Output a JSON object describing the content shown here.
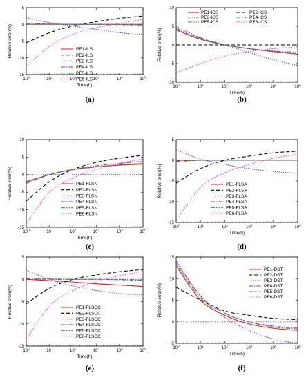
{
  "chart_data": [
    {
      "id": "a",
      "letter": "(a)",
      "type": "line",
      "xlabel": "Time(h)",
      "ylabel": "Relative error(%)",
      "xlim": [
        1,
        100000
      ],
      "ylim": [
        -15,
        5
      ],
      "x_ticks": [
        "10^0",
        "10^1",
        "10^2",
        "10^3",
        "10^4",
        "10^5"
      ],
      "y_ticks": [
        5,
        0,
        -5,
        -10,
        -15
      ],
      "legend": {
        "position": "center",
        "series_names": [
          "PE1-ILS",
          "PE2-ILS",
          "PE3-ILS",
          "PE4-ILS",
          "PE5-ILS",
          "PE6-ILS"
        ]
      },
      "series": [
        {
          "name": "PE1-ILS",
          "x": [
            1,
            10,
            100,
            1000,
            10000,
            100000
          ],
          "y": [
            0,
            0,
            0,
            0,
            0,
            0
          ]
        },
        {
          "name": "PE2-ILS",
          "x": [
            1,
            10,
            100,
            1000,
            10000,
            100000
          ],
          "y": [
            -5.5,
            -2.5,
            -0.5,
            0.8,
            1.8,
            2.5
          ]
        },
        {
          "name": "PE3-ILS",
          "x": [
            1,
            10,
            100,
            1000,
            10000,
            100000
          ],
          "y": [
            2,
            0.5,
            -0.5,
            -1.5,
            -2.5,
            -3
          ]
        },
        {
          "name": "PE4-ILS",
          "x": [
            1,
            10,
            100,
            1000,
            10000,
            100000
          ],
          "y": [
            0.1,
            0.1,
            0,
            0,
            -0.1,
            -0.2
          ]
        },
        {
          "name": "PE5-ILS",
          "x": [
            1,
            10,
            100,
            1000,
            10000,
            100000
          ],
          "y": [
            0.2,
            0.1,
            0,
            0,
            0,
            0
          ]
        },
        {
          "name": "PE6-ILS",
          "x": [
            1,
            10,
            100,
            1000,
            10000,
            100000
          ],
          "y": [
            -12.5,
            -6.5,
            -3,
            -1,
            0.3,
            1.5
          ]
        }
      ]
    },
    {
      "id": "b",
      "letter": "(b)",
      "type": "line",
      "xlabel": "Time(h)",
      "ylabel": "Relative error(%)",
      "xlim": [
        1,
        100000
      ],
      "ylim": [
        -10,
        10
      ],
      "x_ticks": [
        "10^0",
        "10^1",
        "10^2",
        "10^3",
        "10^4",
        "10^5"
      ],
      "y_ticks": [
        10,
        5,
        0,
        -5,
        -10
      ],
      "legend": {
        "position": "top",
        "series_names": [
          "PE1-ICS",
          "PE2-ICS",
          "PE3-ICS",
          "PE4-ICS",
          "PE5-ICS",
          "PE6-ICS"
        ]
      },
      "series": [
        {
          "name": "PE1-ICS",
          "x": [
            1,
            10,
            100,
            1000,
            10000,
            100000
          ],
          "y": [
            4,
            1.5,
            0,
            -1,
            -1.8,
            -2.5
          ]
        },
        {
          "name": "PE2-ICS",
          "x": [
            1,
            10,
            100,
            1000,
            10000,
            100000
          ],
          "y": [
            0,
            0,
            0,
            0,
            0,
            0
          ]
        },
        {
          "name": "PE3-ICS",
          "x": [
            1,
            10,
            100,
            1000,
            10000,
            100000
          ],
          "y": [
            5,
            2,
            0,
            -2,
            -4,
            -5.5
          ]
        },
        {
          "name": "PE4-ICS",
          "x": [
            1,
            10,
            100,
            1000,
            10000,
            100000
          ],
          "y": [
            4.5,
            1.8,
            0,
            -1,
            -1.8,
            -2.2
          ]
        },
        {
          "name": "PE5-ICS",
          "x": [
            1,
            10,
            100,
            1000,
            10000,
            100000
          ],
          "y": [
            4.2,
            1.6,
            0,
            -1,
            -1.6,
            -2
          ]
        },
        {
          "name": "PE6-ICS",
          "x": [
            1,
            10,
            100,
            1000,
            10000,
            100000
          ],
          "y": [
            -7.5,
            -5,
            -3,
            -1.8,
            -1,
            -0.5
          ]
        }
      ]
    },
    {
      "id": "c",
      "letter": "(c)",
      "type": "line",
      "xlabel": "Time(h)",
      "ylabel": "Relative error(%)",
      "xlim": [
        1,
        100000
      ],
      "ylim": [
        -15,
        10
      ],
      "x_ticks": [
        "10^0",
        "10^1",
        "10^2",
        "10^3",
        "10^4",
        "10^5"
      ],
      "y_ticks": [
        10,
        5,
        0,
        -5,
        -10,
        -15
      ],
      "legend": {
        "position": "bottom-right",
        "series_names": [
          "PE1-FLSN",
          "PE2-FLSN",
          "PE3-FLSN",
          "PE4-FLSN",
          "PE5-FLSN",
          "PE6-FLSN"
        ]
      },
      "series": [
        {
          "name": "PE1-FLSN",
          "x": [
            1,
            10,
            100,
            1000,
            10000,
            100000
          ],
          "y": [
            -2,
            0,
            1.5,
            2.2,
            2.7,
            3
          ]
        },
        {
          "name": "PE2-FLSN",
          "x": [
            1,
            10,
            100,
            1000,
            10000,
            100000
          ],
          "y": [
            -7.5,
            -2,
            1.5,
            3.5,
            4.7,
            5.5
          ]
        },
        {
          "name": "PE3-FLSN",
          "x": [
            1,
            10,
            100,
            1000,
            10000,
            100000
          ],
          "y": [
            0,
            0,
            0,
            0,
            0,
            0
          ]
        },
        {
          "name": "PE4-FLSN",
          "x": [
            1,
            10,
            100,
            1000,
            10000,
            100000
          ],
          "y": [
            -2.5,
            0,
            1.5,
            2.5,
            3.2,
            3.8
          ]
        },
        {
          "name": "PE5-FLSN",
          "x": [
            1,
            10,
            100,
            1000,
            10000,
            100000
          ],
          "y": [
            -2.2,
            0,
            1.4,
            2.2,
            2.8,
            3.2
          ]
        },
        {
          "name": "PE6-FLSN",
          "x": [
            1,
            10,
            100,
            1000,
            10000,
            100000
          ],
          "y": [
            -14,
            -5,
            -1,
            1.5,
            3.2,
            4.5
          ]
        }
      ]
    },
    {
      "id": "d",
      "letter": "(d)",
      "type": "line",
      "xlabel": "Time(h)",
      "ylabel": "Relative error(%)",
      "xlim": [
        1,
        100000
      ],
      "ylim": [
        -15,
        5
      ],
      "x_ticks": [
        "10^0",
        "10^1",
        "10^2",
        "10^3",
        "10^4",
        "10^5"
      ],
      "y_ticks": [
        5,
        0,
        -5,
        -10,
        -15
      ],
      "legend": {
        "position": "bottom-center",
        "series_names": [
          "PE1-FLSA",
          "PE2-FLSA",
          "PE3-FLSA",
          "PE4-FLSA",
          "PE5-FLSA",
          "PE6-FLSA"
        ]
      },
      "series": [
        {
          "name": "PE1-FLSA",
          "x": [
            1,
            10,
            100,
            1000,
            10000,
            100000
          ],
          "y": [
            0,
            0,
            0,
            0,
            0,
            0
          ]
        },
        {
          "name": "PE2-FLSA",
          "x": [
            1,
            10,
            100,
            1000,
            10000,
            100000
          ],
          "y": [
            -5.5,
            -2,
            0,
            1,
            1.8,
            2.2
          ]
        },
        {
          "name": "PE3-FLSA",
          "x": [
            1,
            10,
            100,
            1000,
            10000,
            100000
          ],
          "y": [
            2.5,
            0.3,
            -1,
            -2,
            -2.7,
            -3.2
          ]
        },
        {
          "name": "PE4-FLSA",
          "x": [
            1,
            10,
            100,
            1000,
            10000,
            100000
          ],
          "y": [
            -0.3,
            0,
            0,
            0,
            0,
            0
          ]
        },
        {
          "name": "PE5-FLSA",
          "x": [
            1,
            10,
            100,
            1000,
            10000,
            100000
          ],
          "y": [
            -0.2,
            0,
            0,
            0,
            0,
            0
          ]
        },
        {
          "name": "PE6-FLSA",
          "x": [
            1,
            10,
            100,
            1000,
            10000,
            100000
          ],
          "y": [
            -14.5,
            -6.5,
            -3,
            -1,
            0.5,
            1.5
          ]
        }
      ]
    },
    {
      "id": "e",
      "letter": "(e)",
      "type": "line",
      "xlabel": "Time(h)",
      "ylabel": "Relative error(%)",
      "xlim": [
        1,
        100000
      ],
      "ylim": [
        -15,
        5
      ],
      "x_ticks": [
        "10^0",
        "10^1",
        "10^2",
        "10^3",
        "10^4",
        "10^5"
      ],
      "y_ticks": [
        5,
        0,
        -5,
        -10,
        -15
      ],
      "legend": {
        "position": "bottom-center",
        "series_names": [
          "PE1-FLSCC",
          "PE2-FLSCC",
          "PE3-FLSCC",
          "PE4-FLSCC",
          "PE5-FLSCC",
          "PE6-FLSCC"
        ]
      },
      "series": [
        {
          "name": "PE1-FLSCC",
          "x": [
            1,
            10,
            100,
            1000,
            10000,
            100000
          ],
          "y": [
            0,
            -0.3,
            -0.6,
            -1,
            -1.3,
            -1.6
          ]
        },
        {
          "name": "PE2-FLSCC",
          "x": [
            1,
            10,
            100,
            1000,
            10000,
            100000
          ],
          "y": [
            -5.5,
            -2,
            0,
            1,
            1.7,
            2.2
          ]
        },
        {
          "name": "PE3-FLSCC",
          "x": [
            1,
            10,
            100,
            1000,
            10000,
            100000
          ],
          "y": [
            2,
            0,
            -1.5,
            -2.5,
            -3.2,
            -3.5
          ]
        },
        {
          "name": "PE4-FLSCC",
          "x": [
            1,
            10,
            100,
            1000,
            10000,
            100000
          ],
          "y": [
            0.1,
            0,
            0,
            0,
            -0.1,
            -0.2
          ]
        },
        {
          "name": "PE5-FLSCC",
          "x": [
            1,
            10,
            100,
            1000,
            10000,
            100000
          ],
          "y": [
            0.2,
            0.1,
            0,
            0,
            0,
            0
          ]
        },
        {
          "name": "PE6-FLSCC",
          "x": [
            1,
            10,
            100,
            1000,
            10000,
            100000
          ],
          "y": [
            -13.5,
            -6,
            -2.5,
            -0.5,
            0.8,
            1.8
          ]
        }
      ]
    },
    {
      "id": "f",
      "letter": "(f)",
      "type": "line",
      "xlabel": "Time(h)",
      "ylabel": "Relative error(%)",
      "xlim": [
        1,
        100000
      ],
      "ylim": [
        -5,
        15
      ],
      "x_ticks": [
        "10^0",
        "10^1",
        "10^2",
        "10^3",
        "10^4",
        "10^5"
      ],
      "y_ticks": [
        15,
        10,
        5,
        0,
        -5
      ],
      "legend": {
        "position": "top-right",
        "series_names": [
          "PE1-DST",
          "PE2-DST",
          "PE3-DST",
          "PE4-DST",
          "PE5-DST",
          "PE6-DST"
        ]
      },
      "series": [
        {
          "name": "PE1-DST",
          "x": [
            1,
            10,
            100,
            1000,
            10000,
            100000
          ],
          "y": [
            13,
            5,
            1.5,
            -0.5,
            -1.5,
            -2
          ]
        },
        {
          "name": "PE2-DST",
          "x": [
            1,
            10,
            100,
            1000,
            10000,
            100000
          ],
          "y": [
            8,
            5,
            2.5,
            1.5,
            0.8,
            0.5
          ]
        },
        {
          "name": "PE3-DST",
          "x": [
            1,
            10,
            100,
            1000,
            10000,
            100000
          ],
          "y": [
            14,
            6,
            1,
            -2,
            -4,
            -5
          ]
        },
        {
          "name": "PE4-DST",
          "x": [
            1,
            10,
            100,
            1000,
            10000,
            100000
          ],
          "y": [
            14,
            6,
            2,
            0,
            -1,
            -1.5
          ]
        },
        {
          "name": "PE5-DST",
          "x": [
            1,
            10,
            100,
            1000,
            10000,
            100000
          ],
          "y": [
            13.5,
            5.5,
            2,
            0,
            -1.2,
            -1.7
          ]
        },
        {
          "name": "PE6-DST",
          "x": [
            1,
            10,
            100,
            1000,
            10000,
            100000
          ],
          "y": [
            0,
            0,
            0,
            0,
            0,
            0
          ]
        }
      ]
    }
  ],
  "series_styles": [
    {
      "color": "#e41a1c",
      "dash": ""
    },
    {
      "color": "#000000",
      "dash": "5,3"
    },
    {
      "color": "#3b3bd6",
      "dash": "1.2,1.8"
    },
    {
      "color": "#8a2be2",
      "dash": "6,2,1.5,2"
    },
    {
      "color": "#2e9e2e",
      "dash": "6,2,1.5,2,1.5,2"
    },
    {
      "color": "#ff33cc",
      "dash": "1.5,2"
    }
  ]
}
